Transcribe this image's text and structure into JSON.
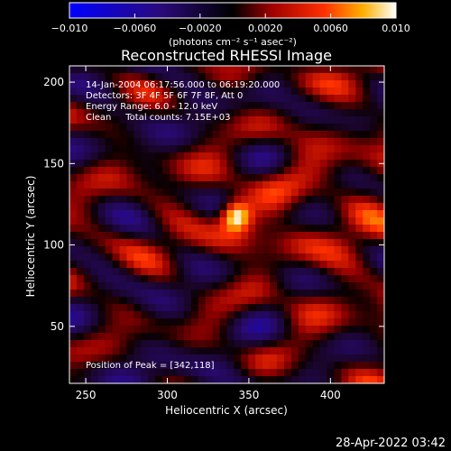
{
  "chart_data": {
    "type": "heatmap",
    "title": "Reconstructed RHESSI Image",
    "xlabel": "Heliocentric X (arcsec)",
    "ylabel": "Heliocentric Y (arcsec)",
    "xlim": [
      240,
      433
    ],
    "ylim": [
      15,
      210
    ],
    "x_ticks": [
      "250",
      "300",
      "350",
      "400"
    ],
    "y_ticks": [
      "50",
      "100",
      "150",
      "200"
    ],
    "x_tick_values": [
      250,
      300,
      350,
      400
    ],
    "y_tick_values": [
      50,
      100,
      150,
      200
    ],
    "colorbar": {
      "range": [
        -0.01,
        0.01
      ],
      "ticks": [
        "−0.010",
        "−0.0060",
        "−0.0020",
        "0.0020",
        "0.0060",
        "0.010"
      ],
      "tick_values": [
        -0.01,
        -0.006,
        -0.002,
        0.002,
        0.006,
        0.01
      ],
      "label": "(photons cm⁻² s⁻¹ asec⁻²)",
      "colors": [
        "#0000ff",
        "#3a0a6a",
        "#000000",
        "#b00000",
        "#ff3300",
        "#ffaa00",
        "#ffffff"
      ]
    },
    "annotations": [
      "14-Jan-2004 06:17:56.000 to 06:19:20.000",
      "Detectors: 3F 4F 5F 6F 7F 8F, Att 0",
      "Energy Range: 6.0 - 12.0 keV",
      "Clean     Total counts: 7.15E+03",
      "Position of Peak = [342,118]"
    ],
    "peak": {
      "x": 342,
      "y": 118
    },
    "grid": false
  },
  "footer": {
    "timestamp": "28-Apr-2022 03:42"
  }
}
